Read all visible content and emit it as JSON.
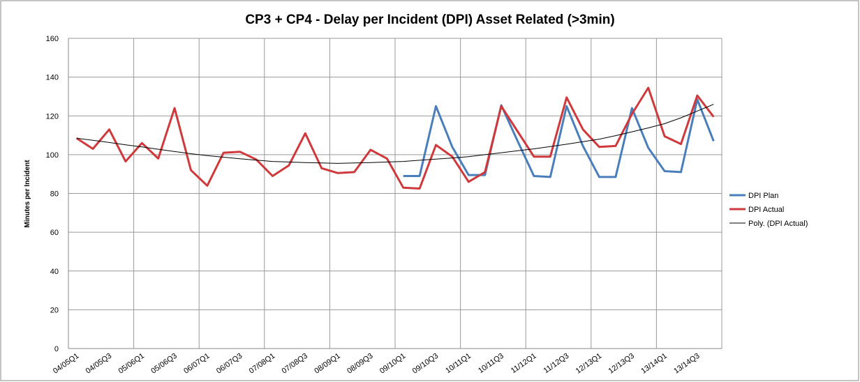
{
  "chart_data": {
    "type": "line",
    "title": "CP3 + CP4 - Delay per Incident (DPI) Asset Related (>3min)",
    "y_label": "Minutes per Incident",
    "categories": [
      "04/05Q1",
      null,
      "04/05Q3",
      null,
      "05/06Q1",
      null,
      "05/06Q3",
      null,
      "06/07Q1",
      null,
      "06/07Q3",
      null,
      "07/08Q1",
      null,
      "07/08Q3",
      null,
      "08/09Q1",
      null,
      "08/09Q3",
      null,
      "09/10Q1",
      null,
      "09/10Q3",
      null,
      "10/11Q1",
      null,
      "10/11Q3",
      null,
      "11/12Q1",
      null,
      "11/12Q3",
      null,
      "12/13Q1",
      null,
      "12/13Q3",
      null,
      "13/14Q1",
      null,
      "13/14Q3",
      null
    ],
    "series": [
      {
        "name": "DPI Plan",
        "color": "#4a7ebb",
        "width": 3,
        "values": [
          null,
          null,
          null,
          null,
          null,
          null,
          null,
          null,
          null,
          null,
          null,
          null,
          null,
          null,
          null,
          null,
          null,
          null,
          null,
          null,
          89,
          89,
          125,
          104,
          89.5,
          89.5,
          125.5,
          107,
          89,
          88.5,
          125,
          104.5,
          88.5,
          88.5,
          124,
          103.5,
          91.5,
          91,
          128.5,
          107
        ]
      },
      {
        "name": "DPI Actual",
        "color": "#d0393b",
        "width": 3,
        "values": [
          108.5,
          103,
          113,
          96.5,
          106,
          98,
          124,
          92,
          84,
          101,
          101.5,
          97.5,
          89,
          94.5,
          111,
          93,
          90.5,
          91,
          102.5,
          98,
          83,
          82.5,
          105,
          99,
          86,
          91,
          125,
          112,
          99,
          99,
          129.5,
          113,
          104,
          104.5,
          121,
          134.5,
          109.5,
          105.5,
          130.5,
          119.5
        ]
      },
      {
        "name": "Poly. (DPI Actual)",
        "color": "#000000",
        "width": 1,
        "values": [
          108.5,
          107.4,
          106.3,
          105.1,
          104,
          102.8,
          101.6,
          100.5,
          99.5,
          98.7,
          97.9,
          97.2,
          96.5,
          96.2,
          95.9,
          95.7,
          95.5,
          95.7,
          95.9,
          96.2,
          96.5,
          97.1,
          97.7,
          98.3,
          99,
          100,
          101,
          102,
          103,
          104.2,
          105.4,
          106.7,
          108,
          109.8,
          111.8,
          113.8,
          116,
          119,
          122.5,
          126
        ]
      }
    ],
    "ylim": [
      0,
      160
    ],
    "yticks": [
      0,
      20,
      40,
      60,
      80,
      100,
      120,
      140,
      160
    ],
    "grid": true,
    "legend": "right"
  }
}
